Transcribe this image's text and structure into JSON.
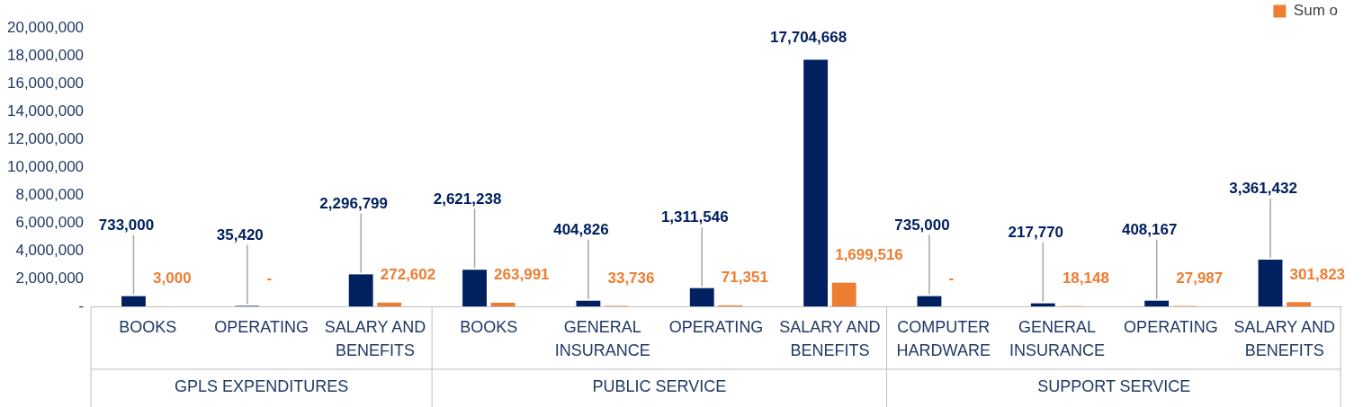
{
  "chart_data": {
    "type": "bar",
    "categories": [
      "BOOKS",
      "OPERATING",
      "SALARY AND BENEFITS",
      "BOOKS",
      "GENERAL INSURANCE",
      "OPERATING",
      "SALARY AND BENEFITS",
      "COMPUTER HARDWARE",
      "GENERAL INSURANCE",
      "OPERATING",
      "SALARY AND BENEFITS"
    ],
    "series": [
      {
        "color": "#002060",
        "values": [
          733000,
          35420,
          2296799,
          2621238,
          404826,
          1311546,
          17704668,
          735000,
          217770,
          408167,
          3361432
        ],
        "value_labels": [
          "733,000",
          "35,420",
          "2,296,799",
          "2,621,238",
          "404,826",
          "1,311,546",
          "17,704,668",
          "735,000",
          "217,770",
          "408,167",
          "3,361,432"
        ]
      },
      {
        "name": "Sum o",
        "color": "#ed7d31",
        "values": [
          3000,
          0,
          272602,
          263991,
          33736,
          71351,
          1699516,
          0,
          18148,
          27987,
          301823
        ],
        "value_labels": [
          "3,000",
          "-",
          "272,602",
          "263,991",
          "33,736",
          "71,351",
          "1,699,516",
          "-",
          "18,148",
          "27,987",
          "301,823"
        ]
      }
    ],
    "annotations": [
      "GPLS EXPENDITURES",
      "PUBLIC SERVICE",
      "SUPPORT SERVICE"
    ],
    "ylim": [
      0,
      20000000
    ],
    "yticks": [
      {
        "value": 0,
        "label": "-"
      },
      {
        "value": 2000000,
        "label": "2,000,000"
      },
      {
        "value": 4000000,
        "label": "4,000,000"
      },
      {
        "value": 6000000,
        "label": "6,000,000"
      },
      {
        "value": 8000000,
        "label": "8,000,000"
      },
      {
        "value": 10000000,
        "label": "10,000,000"
      },
      {
        "value": 12000000,
        "label": "12,000,000"
      },
      {
        "value": 14000000,
        "label": "14,000,000"
      },
      {
        "value": 16000000,
        "label": "16,000,000"
      },
      {
        "value": 18000000,
        "label": "18,000,000"
      },
      {
        "value": 20000000,
        "label": "20,000,000"
      }
    ],
    "grid": false,
    "legend": "top right"
  }
}
